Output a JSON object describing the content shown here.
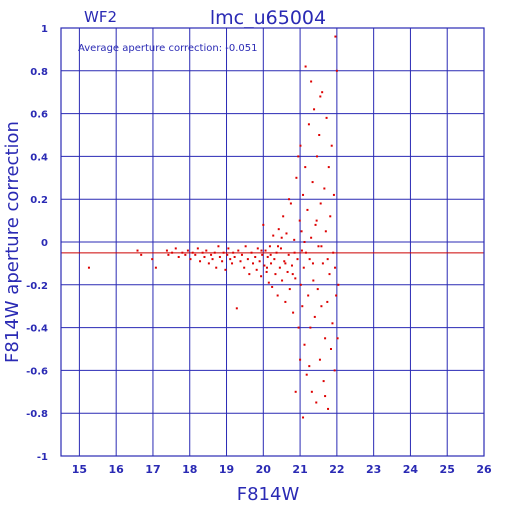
{
  "chart_data": {
    "type": "scatter",
    "chip_label": "WF2",
    "title": "lmc_u65004",
    "annotation": "Average aperture correction:  -0.051",
    "xlabel": "F814W",
    "ylabel": "F814W aperture correction",
    "xlim": [
      14.5,
      26
    ],
    "ylim": [
      -1,
      1
    ],
    "x_ticks": [
      15,
      16,
      17,
      18,
      19,
      20,
      21,
      22,
      23,
      24,
      25,
      26
    ],
    "y_ticks": [
      -1,
      -0.8,
      -0.6,
      -0.4,
      -0.2,
      0,
      0.2,
      0.4,
      0.6,
      0.8,
      1
    ],
    "y_tick_labels": [
      "-1",
      "-0.8",
      "-0.6",
      "-0.4",
      "-0.2",
      "0",
      "0.2",
      "0.4",
      "0.6",
      "0.8",
      "1"
    ],
    "grid": true,
    "reference_line": {
      "y": -0.051,
      "color": "#cc0000"
    },
    "colors": {
      "axes": "#2a2ab4",
      "text": "#2a2ab4",
      "points": "#dd0000"
    },
    "points": [
      [
        15.26,
        -0.12
      ],
      [
        16.58,
        -0.04
      ],
      [
        16.68,
        -0.06
      ],
      [
        16.98,
        -0.08
      ],
      [
        17.08,
        -0.12
      ],
      [
        17.38,
        -0.04
      ],
      [
        17.42,
        -0.06
      ],
      [
        17.52,
        -0.05
      ],
      [
        17.62,
        -0.03
      ],
      [
        17.7,
        -0.07
      ],
      [
        17.8,
        -0.05
      ],
      [
        17.88,
        -0.06
      ],
      [
        17.95,
        -0.04
      ],
      [
        18.02,
        -0.08
      ],
      [
        18.08,
        -0.05
      ],
      [
        18.15,
        -0.06
      ],
      [
        18.22,
        -0.03
      ],
      [
        18.28,
        -0.09
      ],
      [
        18.35,
        -0.05
      ],
      [
        18.4,
        -0.07
      ],
      [
        18.45,
        -0.04
      ],
      [
        18.52,
        -0.1
      ],
      [
        18.58,
        -0.06
      ],
      [
        18.62,
        -0.08
      ],
      [
        18.68,
        -0.05
      ],
      [
        18.72,
        -0.12
      ],
      [
        18.78,
        -0.02
      ],
      [
        18.82,
        -0.07
      ],
      [
        18.88,
        -0.09
      ],
      [
        18.92,
        -0.05
      ],
      [
        18.97,
        -0.13
      ],
      [
        19.02,
        -0.06
      ],
      [
        19.05,
        -0.03
      ],
      [
        19.1,
        -0.08
      ],
      [
        19.15,
        -0.1
      ],
      [
        19.18,
        -0.05
      ],
      [
        19.22,
        -0.07
      ],
      [
        19.28,
        -0.31
      ],
      [
        19.32,
        -0.04
      ],
      [
        19.38,
        -0.09
      ],
      [
        19.42,
        -0.06
      ],
      [
        19.48,
        -0.12
      ],
      [
        19.52,
        -0.02
      ],
      [
        19.58,
        -0.08
      ],
      [
        19.62,
        -0.15
      ],
      [
        19.68,
        -0.05
      ],
      [
        19.72,
        -0.1
      ],
      [
        19.78,
        -0.07
      ],
      [
        19.82,
        -0.13
      ],
      [
        19.85,
        -0.03
      ],
      [
        19.9,
        -0.09
      ],
      [
        19.94,
        -0.16
      ],
      [
        19.97,
        -0.06
      ],
      [
        20.0,
        0.08
      ],
      [
        20.03,
        -0.11
      ],
      [
        20.06,
        -0.04
      ],
      [
        20.09,
        -0.14
      ],
      [
        20.12,
        -0.07
      ],
      [
        20.15,
        -0.19
      ],
      [
        20.18,
        -0.02
      ],
      [
        20.21,
        -0.1
      ],
      [
        20.24,
        -0.21
      ],
      [
        20.27,
        0.03
      ],
      [
        20.3,
        -0.08
      ],
      [
        20.33,
        -0.15
      ],
      [
        20.36,
        -0.05
      ],
      [
        20.39,
        -0.25
      ],
      [
        20.42,
        0.06
      ],
      [
        20.45,
        -0.12
      ],
      [
        20.48,
        -0.03
      ],
      [
        20.51,
        -0.18
      ],
      [
        20.54,
        0.12
      ],
      [
        20.57,
        -0.09
      ],
      [
        20.6,
        -0.28
      ],
      [
        20.63,
        0.04
      ],
      [
        20.66,
        -0.14
      ],
      [
        20.69,
        -0.06
      ],
      [
        20.72,
        -0.22
      ],
      [
        20.75,
        0.18
      ],
      [
        20.78,
        -0.11
      ],
      [
        20.81,
        -0.33
      ],
      [
        20.84,
        0.01
      ],
      [
        20.87,
        -0.17
      ],
      [
        20.9,
        0.3
      ],
      [
        20.93,
        -0.08
      ],
      [
        20.96,
        -0.4
      ],
      [
        20.99,
        0.1
      ],
      [
        21.0,
        -0.55
      ],
      [
        21.01,
        0.45
      ],
      [
        21.02,
        -0.2
      ],
      [
        21.04,
        0.05
      ],
      [
        21.06,
        -0.3
      ],
      [
        21.08,
        0.22
      ],
      [
        21.1,
        -0.12
      ],
      [
        21.12,
        -0.48
      ],
      [
        21.14,
        0.35
      ],
      [
        21.16,
        -0.05
      ],
      [
        21.18,
        -0.62
      ],
      [
        21.2,
        0.15
      ],
      [
        21.22,
        -0.25
      ],
      [
        21.24,
        0.55
      ],
      [
        21.26,
        -0.08
      ],
      [
        21.28,
        -0.4
      ],
      [
        21.3,
        0.02
      ],
      [
        21.32,
        -0.7
      ],
      [
        21.34,
        0.28
      ],
      [
        21.36,
        -0.18
      ],
      [
        21.38,
        0.62
      ],
      [
        21.4,
        -0.35
      ],
      [
        21.42,
        0.08
      ],
      [
        21.44,
        -0.75
      ],
      [
        21.46,
        0.4
      ],
      [
        21.48,
        -0.22
      ],
      [
        21.5,
        -0.02
      ],
      [
        21.52,
        0.5
      ],
      [
        21.54,
        -0.55
      ],
      [
        21.56,
        0.18
      ],
      [
        21.58,
        -0.3
      ],
      [
        21.6,
        0.7
      ],
      [
        21.62,
        -0.1
      ],
      [
        21.64,
        -0.65
      ],
      [
        21.66,
        0.25
      ],
      [
        21.68,
        -0.45
      ],
      [
        21.7,
        0.05
      ],
      [
        21.72,
        0.58
      ],
      [
        21.74,
        -0.28
      ],
      [
        21.76,
        -0.78
      ],
      [
        21.78,
        0.35
      ],
      [
        21.8,
        -0.15
      ],
      [
        21.82,
        0.12
      ],
      [
        21.84,
        -0.5
      ],
      [
        21.86,
        0.45
      ],
      [
        21.88,
        -0.38
      ],
      [
        21.9,
        -0.05
      ],
      [
        21.92,
        0.22
      ],
      [
        21.94,
        -0.6
      ],
      [
        21.96,
        0.96
      ],
      [
        21.98,
        -0.25
      ],
      [
        22.0,
        0.8
      ],
      [
        22.02,
        -0.45
      ],
      [
        22.04,
        -0.2
      ],
      [
        21.15,
        0.82
      ],
      [
        21.3,
        0.75
      ],
      [
        20.95,
        0.4
      ],
      [
        20.7,
        0.2
      ],
      [
        21.55,
        0.68
      ],
      [
        21.08,
        -0.82
      ],
      [
        20.88,
        -0.7
      ],
      [
        21.25,
        -0.58
      ],
      [
        21.68,
        -0.72
      ],
      [
        21.45,
        0.1
      ],
      [
        21.12,
        0.0
      ],
      [
        20.85,
        -0.05
      ],
      [
        21.35,
        -0.1
      ],
      [
        21.58,
        -0.02
      ],
      [
        21.75,
        -0.08
      ],
      [
        21.95,
        -0.12
      ],
      [
        20.6,
        -0.1
      ],
      [
        20.4,
        -0.02
      ],
      [
        20.2,
        -0.06
      ],
      [
        19.95,
        -0.04
      ],
      [
        20.1,
        -0.12
      ],
      [
        20.5,
        0.02
      ],
      [
        20.8,
        -0.15
      ],
      [
        21.05,
        -0.04
      ]
    ]
  }
}
